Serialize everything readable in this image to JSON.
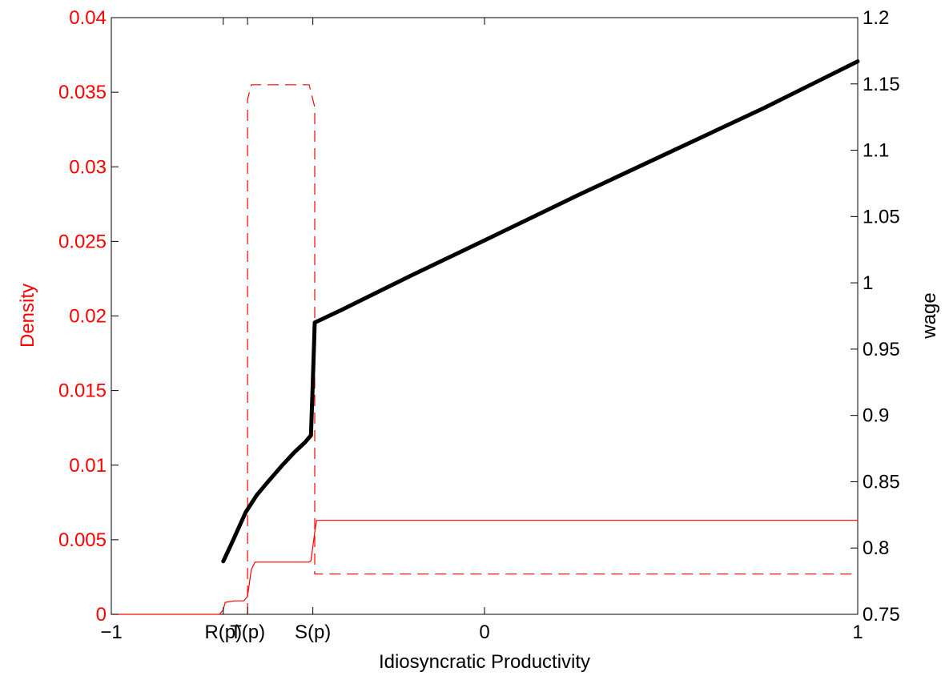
{
  "chart_data": {
    "type": "line",
    "title": "",
    "xlabel": "Idiosyncratic Productivity",
    "ylabel_left": "Density",
    "ylabel_right": "wage",
    "xlim": [
      -1,
      1
    ],
    "ylim_left": [
      0,
      0.04
    ],
    "ylim_right": [
      0.75,
      1.2
    ],
    "grid": false,
    "legend": "none",
    "x_ticks": [
      {
        "value": -1,
        "label": "−1"
      },
      {
        "value": -0.7,
        "label": "R(p)"
      },
      {
        "value": -0.635,
        "label": "T(p)"
      },
      {
        "value": -0.46,
        "label": "S(p)"
      },
      {
        "value": 0,
        "label": "0"
      },
      {
        "value": 1,
        "label": "1"
      }
    ],
    "y_ticks_left": [
      {
        "value": 0,
        "label": "0"
      },
      {
        "value": 0.005,
        "label": "0.005"
      },
      {
        "value": 0.01,
        "label": "0.01"
      },
      {
        "value": 0.015,
        "label": "0.015"
      },
      {
        "value": 0.02,
        "label": "0.02"
      },
      {
        "value": 0.025,
        "label": "0.025"
      },
      {
        "value": 0.03,
        "label": "0.03"
      },
      {
        "value": 0.035,
        "label": "0.035"
      },
      {
        "value": 0.04,
        "label": "0.04"
      }
    ],
    "y_ticks_right": [
      {
        "value": 0.75,
        "label": "0.75"
      },
      {
        "value": 0.8,
        "label": "0.8"
      },
      {
        "value": 0.85,
        "label": "0.85"
      },
      {
        "value": 0.9,
        "label": "0.9"
      },
      {
        "value": 0.95,
        "label": "0.95"
      },
      {
        "value": 1.0,
        "label": "1"
      },
      {
        "value": 1.05,
        "label": "1.05"
      },
      {
        "value": 1.1,
        "label": "1.1"
      },
      {
        "value": 1.15,
        "label": "1.15"
      },
      {
        "value": 1.2,
        "label": "1.2"
      }
    ],
    "series": [
      {
        "axis": "left",
        "color": "#ff0000",
        "style": "solid",
        "width": 1.2,
        "x": [
          -1,
          -0.71,
          -0.7,
          -0.695,
          -0.67,
          -0.66,
          -0.645,
          -0.635,
          -0.625,
          -0.615,
          -0.47,
          -0.465,
          -0.455,
          -0.45,
          1
        ],
        "y": [
          0,
          0,
          0.0003,
          0.0008,
          0.0009,
          0.0009,
          0.0009,
          0.0012,
          0.003,
          0.0035,
          0.0035,
          0.0036,
          0.0055,
          0.0063,
          0.0063
        ]
      },
      {
        "axis": "left",
        "color": "#ff0000",
        "style": "dashed",
        "width": 1.2,
        "x": [
          -0.635,
          -0.635,
          -0.625,
          -0.47,
          -0.465,
          -0.455,
          -0.455,
          1
        ],
        "y": [
          0,
          0.0345,
          0.0355,
          0.0355,
          0.035,
          0.034,
          0.0027,
          0.0027
        ]
      },
      {
        "axis": "right",
        "color": "#000000",
        "style": "solid",
        "width": 5,
        "x": [
          -0.7,
          -0.675,
          -0.64,
          -0.61,
          -0.58,
          -0.54,
          -0.51,
          -0.48,
          -0.465,
          -0.46,
          -0.455,
          -0.38,
          -0.2,
          0,
          0.25,
          0.5,
          0.75,
          1
        ],
        "y": [
          0.79,
          0.805,
          0.827,
          0.84,
          0.85,
          0.863,
          0.872,
          0.88,
          0.885,
          0.925,
          0.97,
          0.98,
          1.005,
          1.032,
          1.066,
          1.099,
          1.132,
          1.167
        ]
      }
    ]
  }
}
